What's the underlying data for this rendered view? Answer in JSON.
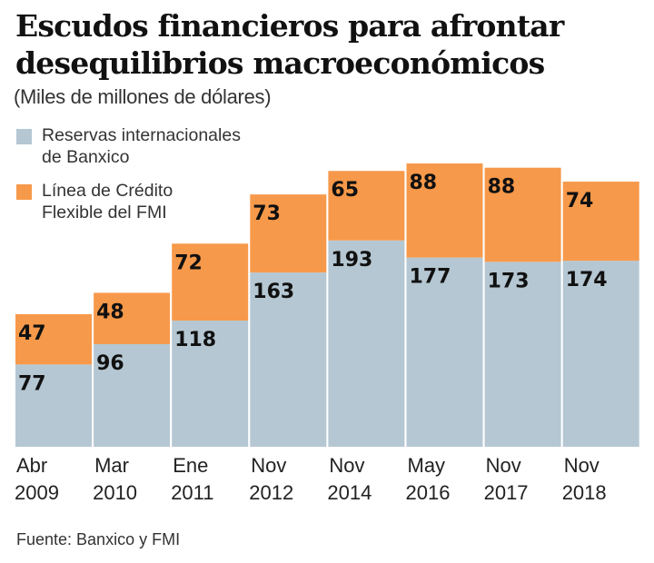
{
  "chart_data": {
    "type": "bar",
    "stacked": true,
    "title": "Escudos financieros para afrontar desequilibrios macroeconómicos",
    "subtitle": "(Miles de millones de dólares)",
    "xlabel": "",
    "ylabel": "",
    "ylim": [
      0,
      265
    ],
    "grid": false,
    "legend_position": "top-left",
    "categories": [
      [
        "Abr",
        "2009"
      ],
      [
        "Mar",
        "2010"
      ],
      [
        "Ene",
        "2011"
      ],
      [
        "Nov",
        "2012"
      ],
      [
        "Nov",
        "2014"
      ],
      [
        "May",
        "2016"
      ],
      [
        "Nov",
        "2017"
      ],
      [
        "Nov",
        "2018"
      ]
    ],
    "series": [
      {
        "name": "Reservas internacionales de Banxico",
        "legend_lines": [
          "Reservas internacionales",
          "de Banxico"
        ],
        "color": "#b5c7d2",
        "values": [
          77,
          96,
          118,
          163,
          193,
          177,
          173,
          174
        ]
      },
      {
        "name": "Línea de Crédito Flexible del FMI",
        "legend_lines": [
          "Línea de Crédito",
          "Flexible del FMI"
        ],
        "color": "#f7994a",
        "values": [
          47,
          48,
          72,
          73,
          65,
          88,
          88,
          74
        ]
      }
    ],
    "source": "Fuente: Banxico y FMI"
  }
}
